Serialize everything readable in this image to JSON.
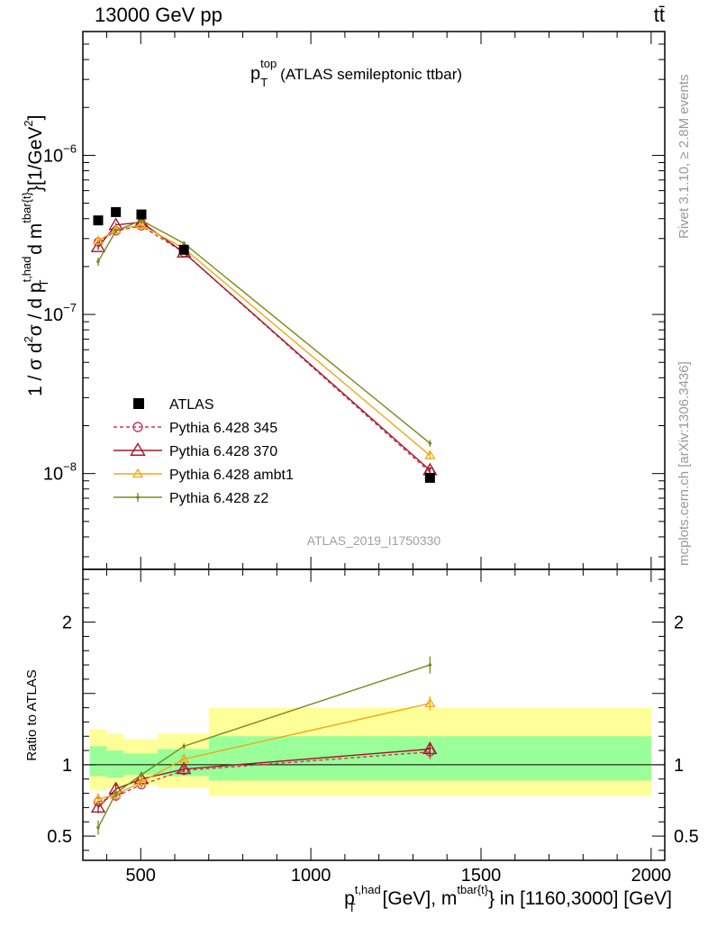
{
  "header": {
    "beam": "13000 GeV pp",
    "process": "tt̄"
  },
  "side_labels": {
    "rivet": "Rivet 3.1.10, ≥ 2.8M events",
    "mcplots": "mcplots.cern.ch [arXiv:1306.3436]"
  },
  "analysis_id": "ATLAS_2019_I1750330",
  "colors": {
    "atlas": "#000000",
    "p345": "#c83a5a",
    "p370": "#a01a2a",
    "ambt1": "#f0a818",
    "z2": "#7a8a1a",
    "band_outer": "#ffff99",
    "band_inner": "#99ff99"
  },
  "chart_data": [
    {
      "type": "line",
      "panel": "main",
      "title_main": "p",
      "title_sup": "top",
      "title_sub": "T",
      "title_rest": "(ATLAS semileptonic ttbar)",
      "ylabel_parts": [
        "1 / σ d",
        "2",
        "σ / d p",
        "t,had",
        "T",
        " d m",
        "tbar{t}",
        "}[1/GeV",
        "2",
        "]"
      ],
      "yscale": "log",
      "ylim": [
        2.5e-09,
        6e-06
      ],
      "xlim": [
        330,
        2040
      ],
      "y_ticks": [
        {
          "value": 1e-08,
          "base": "10",
          "exp": "−8"
        },
        {
          "value": 1e-07,
          "base": "10",
          "exp": "−7"
        },
        {
          "value": 1e-06,
          "base": "10",
          "exp": "−6"
        }
      ],
      "legend": [
        "ATLAS",
        "Pythia 6.428 345",
        "Pythia 6.428 370",
        "Pythia 6.428 ambt1",
        "Pythia 6.428 z2"
      ],
      "atlas": {
        "x": [
          375,
          427,
          502,
          627,
          1350
        ],
        "y": [
          3.9e-07,
          4.4e-07,
          4.25e-07,
          2.55e-07,
          9.4e-09
        ]
      },
      "series": [
        {
          "name": "Pythia 6.428 345",
          "key": "p345",
          "marker": "circle",
          "dash": true,
          "x": [
            375,
            427,
            502,
            627,
            1350
          ],
          "y": [
            2.85e-07,
            3.35e-07,
            3.6e-07,
            2.45e-07,
            1.02e-08
          ],
          "err": [
            0.04,
            0.03,
            0.03,
            0.03,
            0.05
          ]
        },
        {
          "name": "Pythia 6.428 370",
          "key": "p370",
          "marker": "triangle",
          "dash": false,
          "x": [
            375,
            427,
            502,
            627,
            1350
          ],
          "y": [
            2.65e-07,
            3.65e-07,
            3.8e-07,
            2.45e-07,
            1.05e-08
          ],
          "err": [
            0.04,
            0.03,
            0.03,
            0.03,
            0.05
          ]
        },
        {
          "name": "Pythia 6.428 ambt1",
          "key": "ambt1",
          "marker": "triangle-small",
          "dash": false,
          "x": [
            375,
            427,
            502,
            627,
            1350
          ],
          "y": [
            2.9e-07,
            3.4e-07,
            3.65e-07,
            2.6e-07,
            1.3e-08
          ],
          "err": [
            0.04,
            0.03,
            0.03,
            0.03,
            0.05
          ]
        },
        {
          "name": "Pythia 6.428 z2",
          "key": "z2",
          "marker": "dot",
          "dash": false,
          "x": [
            375,
            427,
            502,
            627,
            1350
          ],
          "y": [
            2.15e-07,
            3.35e-07,
            3.9e-07,
            2.8e-07,
            1.55e-08
          ],
          "err": [
            0.06,
            0.03,
            0.03,
            0.03,
            0.05
          ]
        }
      ]
    },
    {
      "type": "line",
      "panel": "ratio",
      "ylabel": "Ratio to ATLAS",
      "ylim": [
        0.33,
        2.37
      ],
      "y_ticks": [
        {
          "value": 0.5,
          "label": "0.5"
        },
        {
          "value": 1,
          "label": "1"
        },
        {
          "value": 2,
          "label": "2"
        }
      ],
      "x_ticks": [
        {
          "value": 500,
          "label": "500"
        },
        {
          "value": 1000,
          "label": "1000"
        },
        {
          "value": 1500,
          "label": "1500"
        },
        {
          "value": 2000,
          "label": "2000"
        }
      ],
      "xlabel_parts": [
        "p",
        "t,had",
        "T",
        " [GeV], m",
        "tbar{t}",
        "} in [1160,3000] [GeV]"
      ],
      "bands": [
        {
          "x0": 350,
          "x1": 400,
          "outer": [
            0.82,
            1.25
          ],
          "inner": [
            0.92,
            1.13
          ]
        },
        {
          "x0": 400,
          "x1": 450,
          "outer": [
            0.84,
            1.22
          ],
          "inner": [
            0.91,
            1.1
          ]
        },
        {
          "x0": 450,
          "x1": 550,
          "outer": [
            0.86,
            1.18
          ],
          "inner": [
            0.93,
            1.08
          ]
        },
        {
          "x0": 550,
          "x1": 700,
          "outer": [
            0.84,
            1.22
          ],
          "inner": [
            0.92,
            1.11
          ]
        },
        {
          "x0": 700,
          "x1": 2000,
          "outer": [
            0.78,
            1.4
          ],
          "inner": [
            0.89,
            1.2
          ]
        }
      ],
      "series": [
        {
          "key": "p345",
          "marker": "circle",
          "dash": true,
          "x": [
            375,
            427,
            502,
            627,
            1350
          ],
          "y": [
            0.74,
            0.78,
            0.86,
            0.96,
            1.09
          ],
          "err": [
            0.03,
            0.03,
            0.02,
            0.02,
            0.05
          ]
        },
        {
          "key": "p370",
          "marker": "triangle",
          "dash": false,
          "x": [
            375,
            427,
            502,
            627,
            1350
          ],
          "y": [
            0.7,
            0.83,
            0.9,
            0.97,
            1.11
          ],
          "err": [
            0.04,
            0.04,
            0.02,
            0.02,
            0.05
          ]
        },
        {
          "key": "ambt1",
          "marker": "triangle-small",
          "dash": false,
          "x": [
            375,
            427,
            502,
            627,
            1350
          ],
          "y": [
            0.76,
            0.79,
            0.88,
            1.04,
            1.43
          ],
          "err": [
            0.04,
            0.03,
            0.02,
            0.02,
            0.05
          ]
        },
        {
          "key": "z2",
          "marker": "dot",
          "dash": false,
          "x": [
            375,
            427,
            502,
            627,
            1350
          ],
          "y": [
            0.56,
            0.8,
            0.93,
            1.13,
            1.7
          ],
          "err": [
            0.05,
            0.03,
            0.02,
            0.02,
            0.06
          ]
        }
      ]
    }
  ]
}
